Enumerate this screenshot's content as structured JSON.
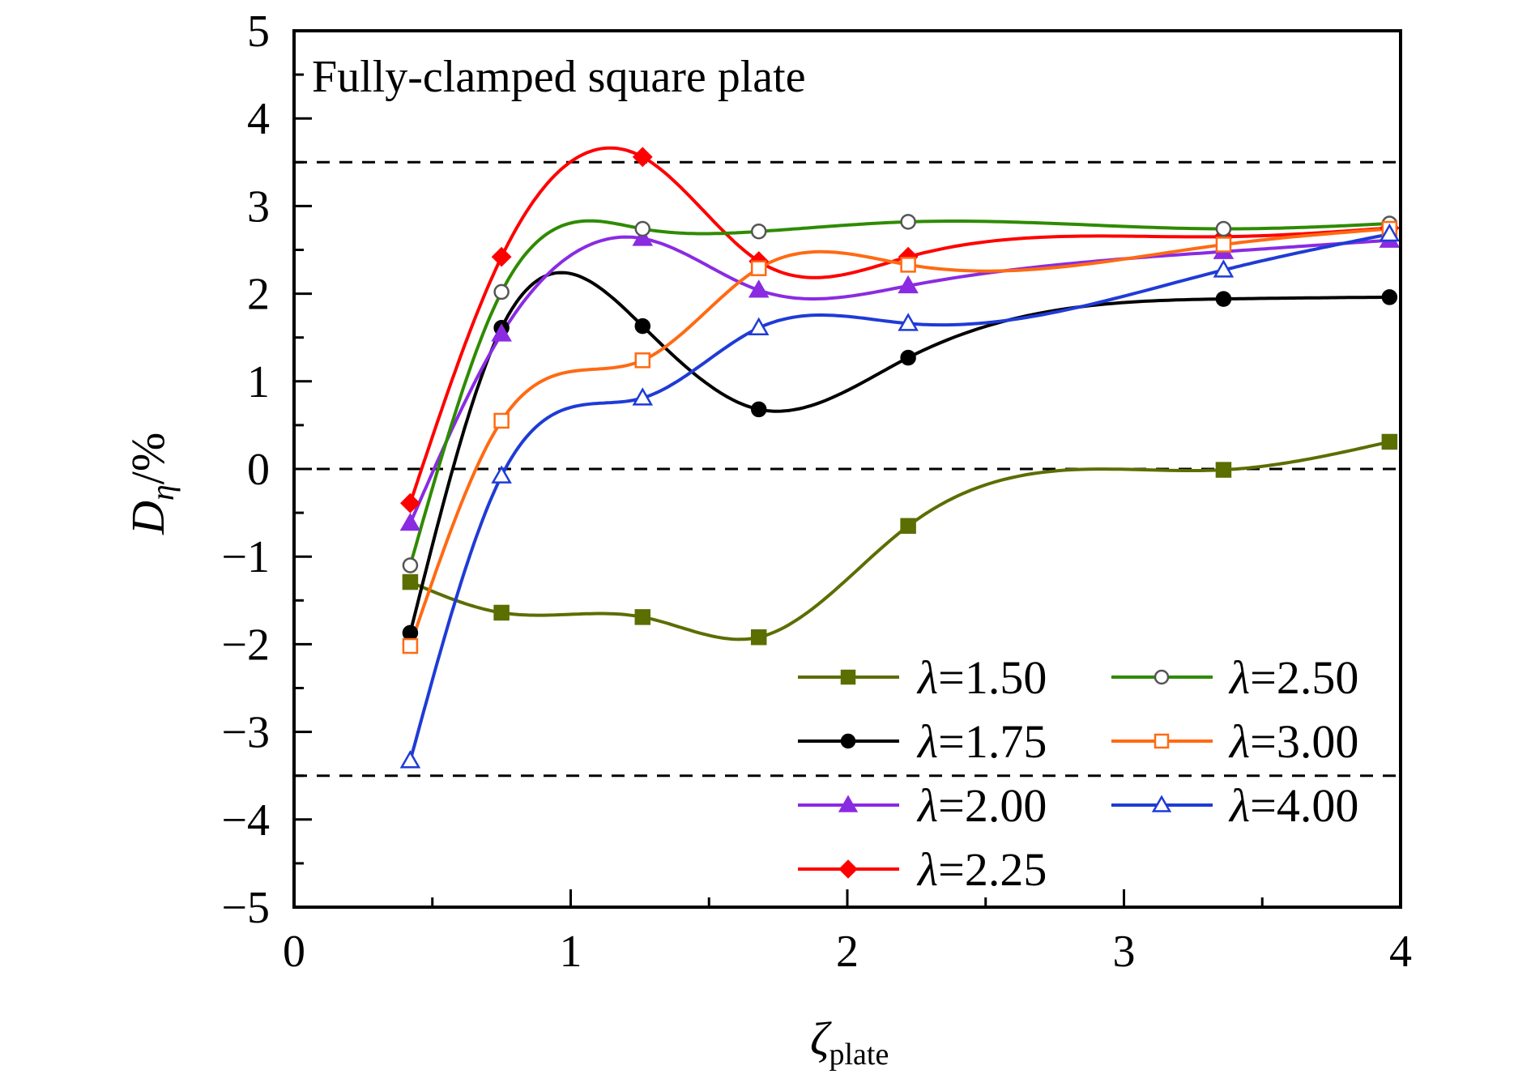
{
  "chart_data": {
    "type": "line",
    "title": "Fully-clamped square plate",
    "xlabel": {
      "main": "ζ",
      "sub": "plate"
    },
    "ylabel": {
      "main": "D",
      "sub": "η",
      "rest": "/%"
    },
    "xlim": [
      0,
      4
    ],
    "ylim": [
      -5,
      5
    ],
    "xticks": [
      0,
      1,
      2,
      3,
      4
    ],
    "xtick_labels": [
      "0",
      "1",
      "2",
      "3",
      "4"
    ],
    "yticks": [
      5,
      4,
      3,
      2,
      1,
      0,
      -1,
      -2,
      -3,
      -4,
      -5
    ],
    "ytick_labels": [
      "5",
      "4",
      "3",
      "2",
      "1",
      "0",
      "−1",
      "−2",
      "−3",
      "−4",
      "−5"
    ],
    "reference_lines": [
      3.5,
      0,
      -3.5
    ],
    "legend_position": "bottom-right",
    "series": [
      {
        "name": "λ=1.50",
        "symbol": "λ",
        "value": "=1.50",
        "color": "#5b6e00",
        "marker": "square-filled",
        "x": [
          0.42,
          0.75,
          1.26,
          1.68,
          2.22,
          3.36,
          3.96
        ],
        "y": [
          -1.29,
          -1.64,
          -1.69,
          -1.92,
          -0.65,
          -0.01,
          0.31
        ]
      },
      {
        "name": "λ=1.75",
        "symbol": "λ",
        "value": "=1.75",
        "color": "#000000",
        "marker": "circle-filled",
        "x": [
          0.42,
          0.75,
          1.26,
          1.68,
          2.22,
          3.36,
          3.96
        ],
        "y": [
          -1.87,
          1.61,
          1.63,
          0.68,
          1.27,
          1.94,
          1.96
        ]
      },
      {
        "name": "λ=2.00",
        "symbol": "λ",
        "value": "=2.00",
        "color": "#8a2be2",
        "marker": "triangle-filled",
        "x": [
          0.42,
          0.75,
          1.26,
          1.68,
          2.22,
          3.36,
          3.96
        ],
        "y": [
          -0.62,
          1.54,
          2.63,
          2.04,
          2.09,
          2.48,
          2.61
        ]
      },
      {
        "name": "λ=2.25",
        "symbol": "λ",
        "value": "=2.25",
        "color": "#ff0000",
        "marker": "diamond-filled",
        "x": [
          0.42,
          0.75,
          1.26,
          1.68,
          2.22,
          3.36,
          3.96
        ],
        "y": [
          -0.39,
          2.42,
          3.56,
          2.37,
          2.42,
          2.65,
          2.75
        ]
      },
      {
        "name": "λ=2.50",
        "symbol": "λ",
        "value": "=2.50",
        "color": "#2e8b00",
        "marker": "circle-open",
        "x": [
          0.42,
          0.75,
          1.26,
          1.68,
          2.22,
          3.36,
          3.96
        ],
        "y": [
          -1.1,
          2.02,
          2.74,
          2.71,
          2.82,
          2.74,
          2.8
        ]
      },
      {
        "name": "λ=3.00",
        "symbol": "λ",
        "value": "=3.00",
        "color": "#ff6a13",
        "marker": "square-open",
        "x": [
          0.42,
          0.75,
          1.26,
          1.68,
          2.22,
          3.36,
          3.96
        ],
        "y": [
          -2.02,
          0.55,
          1.24,
          2.29,
          2.33,
          2.56,
          2.74
        ]
      },
      {
        "name": "λ=4.00",
        "symbol": "λ",
        "value": "=4.00",
        "color": "#1f3bd6",
        "marker": "triangle-open",
        "x": [
          0.42,
          0.75,
          1.26,
          1.68,
          2.22,
          3.36,
          3.96
        ],
        "y": [
          -3.33,
          -0.08,
          0.81,
          1.61,
          1.66,
          2.27,
          2.68
        ]
      }
    ]
  }
}
